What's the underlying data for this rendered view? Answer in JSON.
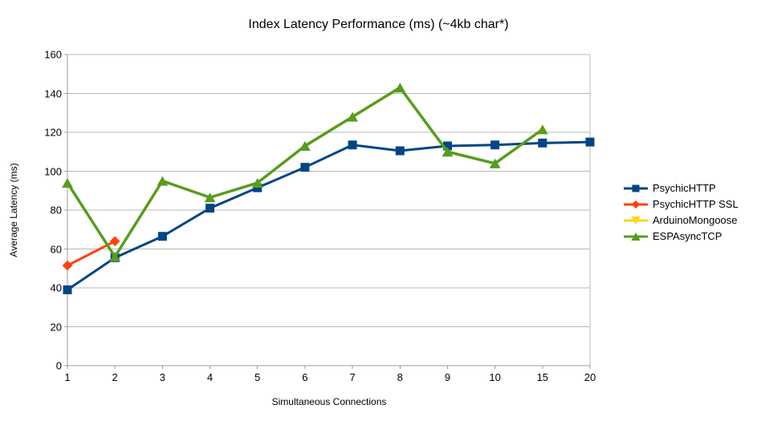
{
  "chart_data": {
    "type": "line",
    "title": "Index Latency Performance (ms) (~4kb char*)",
    "xlabel": "Simultaneous Connections",
    "ylabel": "Average Latency (ms)",
    "categories": [
      "1",
      "2",
      "3",
      "4",
      "5",
      "6",
      "7",
      "8",
      "9",
      "10",
      "15",
      "20"
    ],
    "ylim": [
      0,
      160
    ],
    "ytick_step": 20,
    "grid": true,
    "legend_position": "right",
    "colors": {
      "grid": "#b8b8b8",
      "axis": "#9c9c9c",
      "text": "#000000",
      "background": "#ffffff"
    },
    "series": [
      {
        "name": "PsychicHTTP",
        "color": "#004586",
        "marker": "square",
        "values": [
          39,
          55.5,
          66.5,
          81,
          91.5,
          102,
          113.5,
          110.5,
          113,
          113.5,
          114.5,
          115
        ]
      },
      {
        "name": "PsychicHTTP SSL",
        "color": "#FF420E",
        "marker": "diamond",
        "values": [
          51.5,
          64,
          null,
          null,
          null,
          null,
          null,
          null,
          null,
          null,
          null,
          null
        ]
      },
      {
        "name": "ArduinoMongoose",
        "color": "#FFD320",
        "marker": "triangle-down",
        "values": [
          null,
          null,
          null,
          null,
          null,
          null,
          null,
          null,
          null,
          null,
          null,
          null
        ]
      },
      {
        "name": "ESPAsyncTCP",
        "color": "#579D1C",
        "marker": "triangle-up",
        "values": [
          94,
          56,
          95,
          86.5,
          94,
          113,
          128,
          143,
          110,
          104,
          121.5,
          null
        ]
      }
    ]
  }
}
